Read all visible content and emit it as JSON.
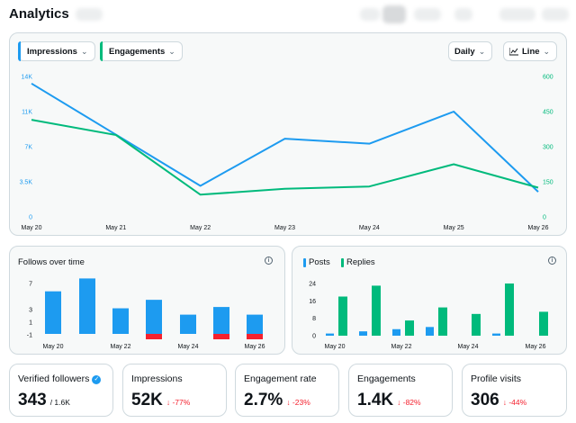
{
  "header": {
    "title": "Analytics"
  },
  "main_chart": {
    "metric1": "Impressions",
    "metric2": "Engagements",
    "granularity": "Daily",
    "chart_type": "Line",
    "colors": {
      "impressions": "#1d9bf0",
      "engagements": "#00ba7c"
    }
  },
  "chart_data": [
    {
      "type": "line",
      "title": "",
      "categories": [
        "May 20",
        "May 21",
        "May 22",
        "May 23",
        "May 24",
        "May 25",
        "May 26"
      ],
      "y_left_ticks": [
        "0",
        "3.5K",
        "7K",
        "11K",
        "14K"
      ],
      "y_right_ticks": [
        "0",
        "150",
        "300",
        "450",
        "600"
      ],
      "ylim_left": [
        0,
        14000
      ],
      "ylim_right": [
        0,
        600
      ],
      "series": [
        {
          "name": "Impressions",
          "axis": "left",
          "values": [
            13300,
            8200,
            3100,
            7800,
            7300,
            10500,
            2500
          ]
        },
        {
          "name": "Engagements",
          "axis": "right",
          "values": [
            415,
            350,
            95,
            120,
            130,
            225,
            125
          ]
        }
      ]
    },
    {
      "type": "bar",
      "title": "Follows over time",
      "categories": [
        "May 20",
        "May 21",
        "May 22",
        "May 23",
        "May 24",
        "May 25",
        "May 26"
      ],
      "x_tick_labels": [
        "May 20",
        "May 22",
        "May 24",
        "May 26"
      ],
      "y_ticks": [
        "-1",
        "1",
        "3",
        "7"
      ],
      "ylim": [
        -1,
        8
      ],
      "series": [
        {
          "name": "Follows",
          "values": [
            5.8,
            7.8,
            3.2,
            4.5,
            2.2,
            3.4,
            2.2
          ]
        },
        {
          "name": "Unfollows",
          "values": [
            0,
            0,
            0,
            -1,
            0,
            -1,
            -1
          ]
        }
      ]
    },
    {
      "type": "bar",
      "title": "",
      "categories": [
        "May 20",
        "May 21",
        "May 22",
        "May 23",
        "May 24",
        "May 25",
        "May 26"
      ],
      "x_tick_labels": [
        "May 20",
        "May 22",
        "May 24",
        "May 26"
      ],
      "y_ticks": [
        "0",
        "8",
        "16",
        "24"
      ],
      "ylim": [
        0,
        26
      ],
      "series": [
        {
          "name": "Posts",
          "values": [
            1,
            2,
            3,
            4,
            0,
            1,
            0
          ]
        },
        {
          "name": "Replies",
          "values": [
            18,
            23,
            7,
            13,
            10,
            24,
            11
          ]
        }
      ]
    }
  ],
  "follows_card": {
    "title": "Follows over time"
  },
  "posts_card": {
    "legend1": "Posts",
    "legend2": "Replies"
  },
  "stats": [
    {
      "label": "Verified followers",
      "value": "343",
      "sub": "/ 1.6K"
    },
    {
      "label": "Impressions",
      "value": "52K",
      "change": "↓ -77%"
    },
    {
      "label": "Engagement rate",
      "value": "2.7%",
      "change": "↓ -23%"
    },
    {
      "label": "Engagements",
      "value": "1.4K",
      "change": "↓ -82%"
    },
    {
      "label": "Profile visits",
      "value": "306",
      "change": "↓ -44%"
    }
  ]
}
